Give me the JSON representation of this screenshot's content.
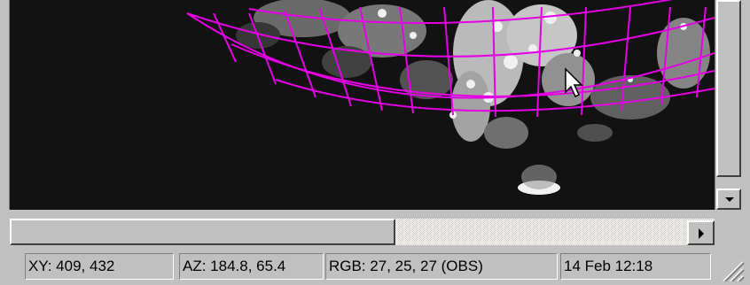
{
  "status_bar": {
    "xy": "XY: 409, 432",
    "az": "AZ: 184.8, 65.4",
    "rgb": "RGB:  27,  25,  27 (OBS)",
    "datetime": "14 Feb 12:18"
  },
  "colors": {
    "grid_overlay": "#e600e6",
    "window_face": "#c0c0c0"
  },
  "icons": {
    "vertical_scroll_down": "arrow-down-icon",
    "horizontal_scroll_right": "arrow-right-icon",
    "resize_grip": "resize-grip-icon",
    "cursor": "mouse-pointer-icon"
  }
}
